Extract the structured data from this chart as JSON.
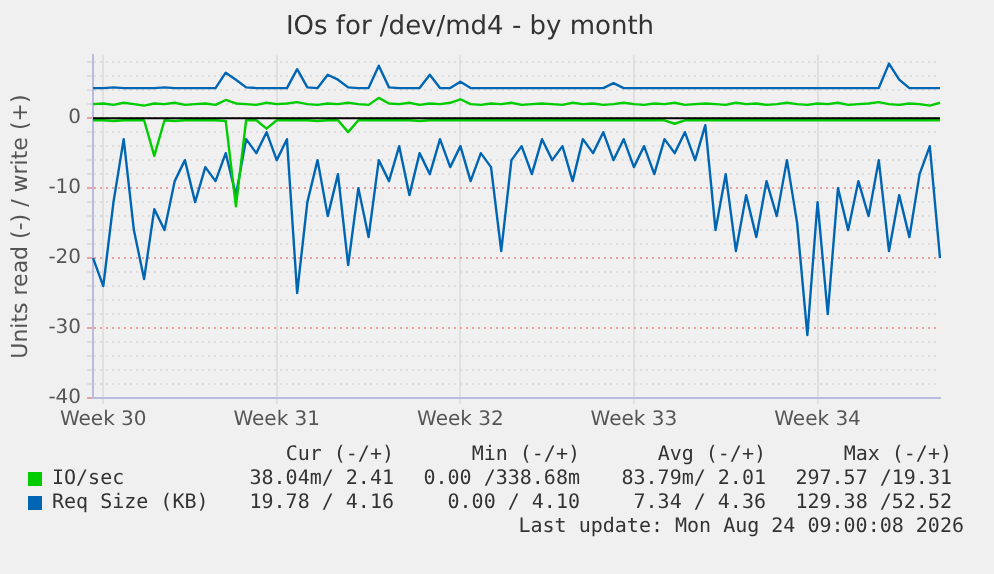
{
  "chart_data": {
    "type": "line",
    "title": "IOs for /dev/md4 - by month",
    "ylabel": "Units read (-) / write (+)",
    "categories": [
      null,
      "Week 30",
      null,
      null,
      null,
      null,
      null,
      null,
      null,
      null,
      null,
      null,
      null,
      null,
      null,
      null,
      null,
      null,
      "Week 31",
      null,
      null,
      null,
      null,
      null,
      null,
      null,
      null,
      null,
      null,
      null,
      null,
      null,
      null,
      null,
      null,
      null,
      "Week 32",
      null,
      null,
      null,
      null,
      null,
      null,
      null,
      null,
      null,
      null,
      null,
      null,
      null,
      null,
      null,
      null,
      "Week 33",
      null,
      null,
      null,
      null,
      null,
      null,
      null,
      null,
      null,
      null,
      null,
      null,
      null,
      null,
      null,
      null,
      null,
      "Week 34",
      null,
      null,
      null,
      null,
      null,
      null,
      null,
      null,
      null,
      null,
      null,
      null
    ],
    "series": [
      {
        "name": "IO/sec",
        "color": "#00cc00",
        "values": [
          2,
          2.1,
          1.9,
          2.2,
          2,
          1.8,
          2.1,
          2,
          2.2,
          1.9,
          2,
          2.1,
          1.9,
          2.6,
          2.1,
          2,
          1.9,
          2.2,
          2,
          2.1,
          2.3,
          2,
          1.9,
          2.1,
          2,
          2.2,
          2,
          1.9,
          2.9,
          2.1,
          2,
          2.2,
          1.9,
          2.1,
          2,
          2.2,
          2.7,
          2,
          1.9,
          2.1,
          2,
          2.2,
          1.9,
          2,
          2.1,
          2,
          1.9,
          2.2,
          2,
          2.1,
          1.9,
          2,
          2.2,
          2,
          1.9,
          2.1,
          2,
          2.2,
          1.9,
          2,
          2.1,
          2,
          1.9,
          2.2,
          2,
          2.1,
          1.9,
          2,
          2.2,
          2,
          1.9,
          2.1,
          2,
          2.2,
          1.9,
          2,
          2.1,
          2.3,
          2,
          1.9,
          2.1,
          2,
          1.8,
          2.2
        ]
      },
      {
        "color": "#00cc00",
        "values": [
          -0.3,
          -0.3,
          -0.4,
          -0.3,
          -0.3,
          -0.3,
          -5.4,
          -0.3,
          -0.4,
          -0.3,
          -0.3,
          -0.3,
          -0.3,
          -0.4,
          -12.6,
          -0.3,
          -0.3,
          -1.5,
          -0.3,
          -0.3,
          -0.3,
          -0.3,
          -0.4,
          -0.3,
          -0.3,
          -2,
          -0.3,
          -0.3,
          -0.3,
          -0.3,
          -0.3,
          -0.3,
          -0.4,
          -0.3,
          -0.3,
          -0.3,
          -0.3,
          -0.3,
          -0.3,
          -0.3,
          -0.3,
          -0.3,
          -0.3,
          -0.3,
          -0.3,
          -0.3,
          -0.3,
          -0.3,
          -0.3,
          -0.3,
          -0.3,
          -0.3,
          -0.3,
          -0.3,
          -0.3,
          -0.3,
          -0.3,
          -0.8,
          -0.3,
          -0.3,
          -0.3,
          -0.3,
          -0.3,
          -0.3,
          -0.3,
          -0.3,
          -0.3,
          -0.3,
          -0.3,
          -0.3,
          -0.3,
          -0.3,
          -0.3,
          -0.3,
          -0.3,
          -0.3,
          -0.3,
          -0.3,
          -0.3,
          -0.3,
          -0.3,
          -0.3,
          -0.3,
          -0.3
        ]
      },
      {
        "name": "Req Size (KB)",
        "color": "#0066b3",
        "values": [
          4.3,
          4.3,
          4.4,
          4.3,
          4.3,
          4.3,
          4.3,
          4.4,
          4.3,
          4.3,
          4.3,
          4.3,
          4.3,
          6.5,
          5.5,
          4.4,
          4.3,
          4.3,
          4.3,
          4.3,
          7,
          4.4,
          4.3,
          6.2,
          5.5,
          4.4,
          4.3,
          4.3,
          7.5,
          4.4,
          4.3,
          4.3,
          4.3,
          6.2,
          4.3,
          4.3,
          5.2,
          4.3,
          4.3,
          4.3,
          4.3,
          4.3,
          4.3,
          4.3,
          4.3,
          4.3,
          4.3,
          4.3,
          4.3,
          4.3,
          4.3,
          5,
          4.3,
          4.3,
          4.3,
          4.3,
          4.3,
          4.3,
          4.3,
          4.3,
          4.3,
          4.3,
          4.3,
          4.3,
          4.3,
          4.3,
          4.3,
          4.3,
          4.3,
          4.3,
          4.3,
          4.3,
          4.3,
          4.3,
          4.3,
          4.3,
          4.3,
          4.3,
          7.8,
          5.5,
          4.3,
          4.3,
          4.3,
          4.3
        ]
      },
      {
        "color": "#0066b3",
        "values": [
          -20,
          -24,
          -12,
          -3,
          -16,
          -23,
          -13,
          -16,
          -9,
          -6,
          -12,
          -7,
          -9,
          -5,
          -11,
          -3,
          -5,
          -2,
          -6,
          -3,
          -25,
          -12,
          -6,
          -14,
          -8,
          -21,
          -10,
          -17,
          -6,
          -9,
          -4,
          -11,
          -5,
          -8,
          -3,
          -7,
          -4,
          -9,
          -5,
          -7,
          -19,
          -6,
          -4,
          -8,
          -3,
          -6,
          -4,
          -9,
          -3,
          -5,
          -2,
          -6,
          -3,
          -7,
          -4,
          -8,
          -3,
          -5,
          -2,
          -6,
          -1,
          -16,
          -8,
          -19,
          -11,
          -17,
          -9,
          -14,
          -6,
          -15,
          -31,
          -12,
          -28,
          -10,
          -16,
          -9,
          -14,
          -6,
          -19,
          -11,
          -17,
          -8,
          -4,
          -20
        ]
      }
    ],
    "ylim": [
      -40,
      9
    ],
    "yticks": [
      -40,
      {
        "value": -38,
        "label": null
      },
      {
        "value": -36,
        "label": null
      },
      {
        "value": -34,
        "label": null
      },
      {
        "value": -32,
        "label": null
      },
      -30,
      {
        "value": -28,
        "label": null
      },
      {
        "value": -26,
        "label": null
      },
      {
        "value": -24,
        "label": null
      },
      {
        "value": -22,
        "label": null
      },
      -20,
      {
        "value": -18,
        "label": null
      },
      {
        "value": -16,
        "label": null
      },
      {
        "value": -14,
        "label": null
      },
      {
        "value": -12,
        "label": null
      },
      -10,
      {
        "value": -8,
        "label": null
      },
      {
        "value": -6,
        "label": null
      },
      {
        "value": -4,
        "label": null
      },
      {
        "value": -2,
        "label": null
      },
      0,
      {
        "value": 2,
        "label": null
      },
      {
        "value": 4,
        "label": null
      },
      {
        "value": 6,
        "label": null
      },
      {
        "value": 8,
        "label": null
      }
    ],
    "ref_lines": [
      {
        "axis": "y",
        "value": 0,
        "color": "#000000"
      }
    ],
    "grid": true,
    "marker": "none",
    "legend": "bottom",
    "annotations": [
      "Cur (-/+)",
      "Min (-/+)",
      "Avg (-/+)",
      "Max (-/+)",
      "38.04m/ 2.41",
      "0.00 /338.68m",
      "83.79m/ 2.01",
      "297.57 /19.31",
      "19.78 / 4.16",
      "0.00 / 4.10",
      "7.34 / 4.36",
      "129.38 /52.52",
      "Last update: Mon Aug 24 09:00:08 2026"
    ]
  }
}
